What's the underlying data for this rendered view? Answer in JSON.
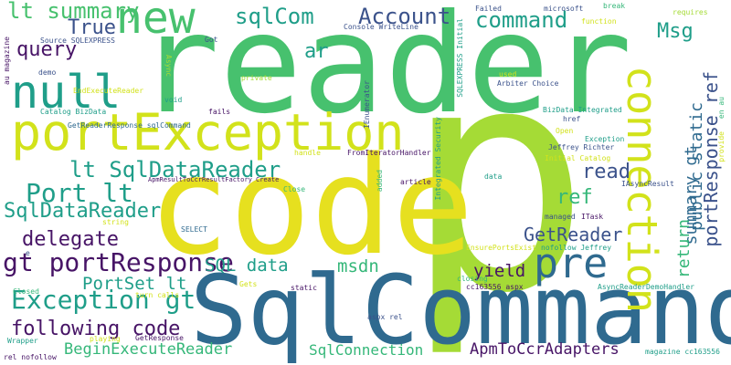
{
  "palette": {
    "light_green": "#a5db36",
    "yellow": "#e6e01f",
    "green": "#47c16e",
    "teal": "#1f9e89",
    "blue": "#2f6a8f",
    "navy": "#3b528b",
    "purple": "#471466",
    "pale_yellow": "#d2e21b",
    "light_teal": "#35b779"
  },
  "words": [
    {
      "id": "p",
      "text": "p",
      "color": "#a5db36"
    },
    {
      "id": "reader",
      "text": "reader",
      "color": "#47c16e"
    },
    {
      "id": "code",
      "text": "code",
      "color": "#e6e01f"
    },
    {
      "id": "sqlcommand",
      "text": "SqlCommand",
      "color": "#2f6a8f"
    },
    {
      "id": "portexception",
      "text": "portException",
      "color": "#d2e21b"
    },
    {
      "id": "null",
      "text": "null",
      "color": "#1f9e89"
    },
    {
      "id": "new",
      "text": "new",
      "color": "#47c16e"
    },
    {
      "id": "connection",
      "text": "connection",
      "color": "#d2e21b"
    },
    {
      "id": "pre",
      "text": "pre",
      "color": "#2f6a8f"
    },
    {
      "id": "exception-gt",
      "text": "Exception gt",
      "color": "#1f9e89"
    },
    {
      "id": "gt-portresponse",
      "text": "gt portResponse",
      "color": "#471466"
    },
    {
      "id": "lt-summary",
      "text": "lt summary",
      "color": "#47c16e"
    },
    {
      "id": "sqlcom",
      "text": "sqlCom",
      "color": "#1f9e89"
    },
    {
      "id": "account",
      "text": "Account",
      "color": "#3b528b"
    },
    {
      "id": "command",
      "text": "command",
      "color": "#1f9e89"
    },
    {
      "id": "true",
      "text": "True",
      "color": "#3b528b"
    },
    {
      "id": "query",
      "text": "query",
      "color": "#471466"
    },
    {
      "id": "msg",
      "text": "Msg",
      "color": "#1f9e89"
    },
    {
      "id": "ar",
      "text": "ar",
      "color": "#1f9e89"
    },
    {
      "id": "lt-sqldatareader",
      "text": "lt SqlDataReader",
      "color": "#1f9e89"
    },
    {
      "id": "port-lt",
      "text": "Port lt",
      "color": "#1f9e89"
    },
    {
      "id": "sqldatareader",
      "text": "SqlDataReader",
      "color": "#1f9e89"
    },
    {
      "id": "delegate",
      "text": "delegate",
      "color": "#471466"
    },
    {
      "id": "read",
      "text": "read",
      "color": "#3b528b"
    },
    {
      "id": "ref",
      "text": "ref",
      "color": "#35b779"
    },
    {
      "id": "getreader",
      "text": "GetReader",
      "color": "#3b528b"
    },
    {
      "id": "sql-data",
      "text": "SQL data",
      "color": "#1f9e89"
    },
    {
      "id": "msdn",
      "text": "msdn",
      "color": "#35b779"
    },
    {
      "id": "yield",
      "text": "yield",
      "color": "#471466"
    },
    {
      "id": "portset-lt",
      "text": "PortSet lt",
      "color": "#1f9e89"
    },
    {
      "id": "following-code",
      "text": "following code",
      "color": "#471466"
    },
    {
      "id": "beginexecutereader",
      "text": "BeginExecuteReader",
      "color": "#35b779"
    },
    {
      "id": "sqlconnection",
      "text": "SqlConnection",
      "color": "#35b779"
    },
    {
      "id": "apmtoccradapters",
      "text": "ApmToCcrAdapters",
      "color": "#471466"
    },
    {
      "id": "summary-gt",
      "text": "summary gt",
      "color": "#2f6a8f"
    },
    {
      "id": "return",
      "text": "return",
      "color": "#35b779"
    },
    {
      "id": "public-static",
      "text": "public static",
      "color": "#2f6a8f"
    },
    {
      "id": "portresponse-ref",
      "text": "portResponse ref",
      "color": "#3b528b"
    },
    {
      "id": "source-sqlexpress",
      "text": "Source SQLEXPRESS",
      "color": "#3b528b"
    },
    {
      "id": "endexecutereader",
      "text": "EndExecuteReader",
      "color": "#d2e21b"
    },
    {
      "id": "demo",
      "text": "demo",
      "color": "#3b528b"
    },
    {
      "id": "got",
      "text": "Got",
      "color": "#3b528b"
    },
    {
      "id": "async",
      "text": "Async",
      "color": "#a5db36"
    },
    {
      "id": "console-writeline",
      "text": "Console WriteLine",
      "color": "#3b528b"
    },
    {
      "id": "failed",
      "text": "Failed",
      "color": "#3b528b"
    },
    {
      "id": "microsoft",
      "text": "microsoft",
      "color": "#3b528b"
    },
    {
      "id": "break",
      "text": "break",
      "color": "#35b779"
    },
    {
      "id": "requires",
      "text": "requires",
      "color": "#a5db36"
    },
    {
      "id": "function",
      "text": "function",
      "color": "#d2e21b"
    },
    {
      "id": "private",
      "text": "private",
      "color": "#a5db36"
    },
    {
      "id": "void",
      "text": "void",
      "color": "#1f9e89"
    },
    {
      "id": "catalog-bizdata",
      "text": "Catalog BizData",
      "color": "#1f9e89"
    },
    {
      "id": "fails",
      "text": "fails",
      "color": "#471466"
    },
    {
      "id": "getreaderresponse-sqlcommand",
      "text": "GetReaderResponse sqlCommand",
      "color": "#2f6a8f"
    },
    {
      "id": "handle",
      "text": "handle",
      "color": "#d2e21b"
    },
    {
      "id": "fromiteratorhandler",
      "text": "FromIteratorHandler",
      "color": "#471466"
    },
    {
      "id": "apmresulttoccrresultfactory-create",
      "text": "ApmResultToCcrResultFactory Create",
      "color": "#471466"
    },
    {
      "id": "close",
      "text": "Close",
      "color": "#35b779"
    },
    {
      "id": "used",
      "text": "used",
      "color": "#d2e21b"
    },
    {
      "id": "arbiter-choice",
      "text": "Arbiter Choice",
      "color": "#3b528b"
    },
    {
      "id": "sqlexpress-initial",
      "text": "SQLEXPRESS Initial",
      "color": "#1f9e89"
    },
    {
      "id": "integrated-security",
      "text": "Integrated Security",
      "color": "#1f9e89"
    },
    {
      "id": "ienumerator",
      "text": "IEnumerator",
      "color": "#3b528b"
    },
    {
      "id": "bizdata-integrated",
      "text": "BizData Integrated",
      "color": "#1f9e89"
    },
    {
      "id": "href",
      "text": "href",
      "color": "#3b528b"
    },
    {
      "id": "open",
      "text": "Open",
      "color": "#d2e21b"
    },
    {
      "id": "exception",
      "text": "Exception",
      "color": "#1f9e89"
    },
    {
      "id": "jeffrey-richter",
      "text": "Jeffrey Richter",
      "color": "#3b528b"
    },
    {
      "id": "initial-catalog",
      "text": "Initial Catalog",
      "color": "#d2e21b"
    },
    {
      "id": "iasyncresult",
      "text": "IAsyncResult",
      "color": "#3b528b"
    },
    {
      "id": "en-au",
      "text": "en au",
      "color": "#35b779"
    },
    {
      "id": "provide",
      "text": "provide",
      "color": "#d2e21b"
    },
    {
      "id": "au-magazine",
      "text": "au magazine",
      "color": "#471466"
    },
    {
      "id": "article",
      "text": "article",
      "color": "#471466"
    },
    {
      "id": "added",
      "text": "added",
      "color": "#35b779"
    },
    {
      "id": "data",
      "text": "data",
      "color": "#1f9e89"
    },
    {
      "id": "managed",
      "text": "managed",
      "color": "#3b528b"
    },
    {
      "id": "itask",
      "text": "ITask",
      "color": "#471466"
    },
    {
      "id": "select",
      "text": "SELECT",
      "color": "#2f6a8f"
    },
    {
      "id": "string",
      "text": "string",
      "color": "#d2e21b"
    },
    {
      "id": "ensureportsexist",
      "text": "EnsurePortsExist",
      "color": "#d2e21b"
    },
    {
      "id": "nofollow-jeffrey",
      "text": "nofollow Jeffrey",
      "color": "#1f9e89"
    },
    {
      "id": "e",
      "text": "e",
      "color": "#3b528b"
    },
    {
      "id": "closed",
      "text": "Closed",
      "color": "#35b779"
    },
    {
      "id": "turn-calls",
      "text": "turn calls",
      "color": "#d2e21b"
    },
    {
      "id": "gets",
      "text": "Gets",
      "color": "#d2e21b"
    },
    {
      "id": "static",
      "text": "static",
      "color": "#471466"
    },
    {
      "id": "closing",
      "text": "closing",
      "color": "#35b779"
    },
    {
      "id": "cc163556-aspx",
      "text": "cc163556 aspx",
      "color": "#471466"
    },
    {
      "id": "asyncreaderdemohandler",
      "text": "AsyncReaderDemoHandler",
      "color": "#1f9e89"
    },
    {
      "id": "aspx-rel",
      "text": "aspx rel",
      "color": "#3b528b"
    },
    {
      "id": "wrapper",
      "text": "Wrapper",
      "color": "#1f9e89"
    },
    {
      "id": "playing",
      "text": "playing",
      "color": "#d2e21b"
    },
    {
      "id": "getresponse",
      "text": "GetResponse",
      "color": "#471466"
    },
    {
      "id": "rel-nofollow",
      "text": "rel nofollow",
      "color": "#471466"
    },
    {
      "id": "magazine-cc163556",
      "text": "magazine cc163556",
      "color": "#1f9e89"
    }
  ]
}
